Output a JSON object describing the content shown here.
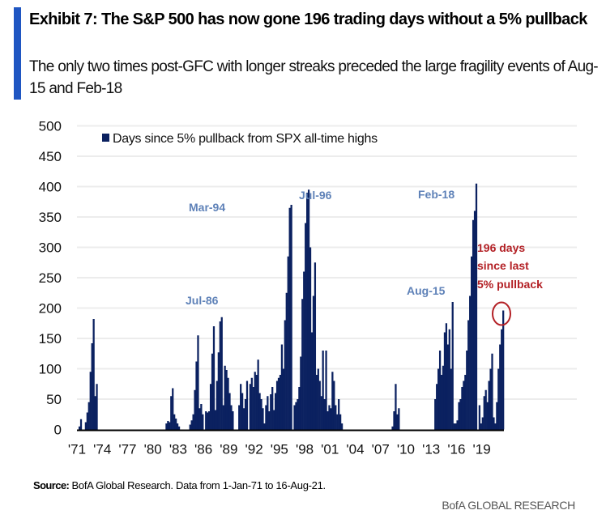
{
  "header": {
    "title": "Exhibit 7: The S&P 500 has now gone 196 trading days without a 5% pullback",
    "subtitle": "The only two times post-GFC with longer streaks preceded the large fragility events of Aug-15 and Feb-18"
  },
  "footer": {
    "source_label": "Source:",
    "source_text": "BofA Global Research. Data from 1-Jan-71 to 16-Aug-21.",
    "brand": "BofA GLOBAL RESEARCH"
  },
  "colors": {
    "accent": "#1f56c2",
    "bar": "#0b2160",
    "annotation": "#5f82b8",
    "highlight": "#b32025",
    "grid": "#ececec"
  },
  "chart_data": {
    "type": "bar",
    "title": "Exhibit 7: The S&P 500 has now gone 196 trading days without a 5% pullback",
    "xlabel": "",
    "ylabel": "",
    "ylim": [
      0,
      500
    ],
    "yticks": [
      "0",
      "50",
      "100",
      "150",
      "200",
      "250",
      "300",
      "350",
      "400",
      "450",
      "500"
    ],
    "ytick_values": [
      0,
      50,
      100,
      150,
      200,
      250,
      300,
      350,
      400,
      450,
      500
    ],
    "xticks": [
      "'71",
      "'74",
      "'77",
      "'80",
      "'83",
      "'86",
      "'89",
      "'92",
      "'95",
      "'98",
      "'01",
      "'04",
      "'07",
      "'10",
      "'13",
      "'16",
      "'19"
    ],
    "xtick_years": [
      1971,
      1974,
      1977,
      1980,
      1983,
      1986,
      1989,
      1992,
      1995,
      1998,
      2001,
      2004,
      2007,
      2010,
      2013,
      2016,
      2019
    ],
    "x_start_year": 1971.0,
    "x_end_year": 2021.63,
    "grid": true,
    "legend": {
      "position": "top",
      "entries": [
        "Days since 5% pullback from SPX all-time highs"
      ]
    },
    "series": [
      {
        "name": "Days since 5% pullback from SPX all-time highs",
        "values": [
          0,
          5,
          17,
          0,
          0,
          12,
          28,
          45,
          95,
          142,
          182,
          55,
          75,
          0,
          0,
          0,
          0,
          0,
          0,
          0,
          0,
          0,
          0,
          0,
          0,
          0,
          0,
          0,
          0,
          0,
          0,
          0,
          0,
          0,
          0,
          0,
          0,
          0,
          0,
          0,
          0,
          0,
          0,
          0,
          0,
          0,
          0,
          0,
          0,
          0,
          0,
          0,
          0,
          0,
          0,
          0,
          10,
          14,
          12,
          55,
          68,
          25,
          18,
          10,
          5,
          0,
          0,
          0,
          0,
          0,
          0,
          8,
          15,
          25,
          65,
          112,
          155,
          35,
          42,
          25,
          0,
          30,
          28,
          30,
          75,
          125,
          170,
          32,
          80,
          127,
          178,
          185,
          40,
          105,
          98,
          85,
          60,
          40,
          30,
          0,
          0,
          0,
          40,
          75,
          60,
          35,
          50,
          80,
          0,
          75,
          85,
          70,
          95,
          90,
          115,
          60,
          50,
          35,
          10,
          40,
          55,
          30,
          58,
          70,
          32,
          60,
          80,
          85,
          90,
          140,
          100,
          180,
          225,
          285,
          365,
          370,
          0,
          40,
          45,
          50,
          70,
          120,
          215,
          260,
          340,
          390,
          395,
          300,
          160,
          220,
          275,
          90,
          100,
          80,
          55,
          130,
          50,
          130,
          30,
          40,
          35,
          95,
          80,
          40,
          25,
          50,
          25,
          10,
          0,
          0,
          0,
          0,
          0,
          0,
          0,
          0,
          0,
          0,
          0,
          0,
          0,
          0,
          0,
          0,
          0,
          0,
          0,
          0,
          0,
          0,
          0,
          0,
          0,
          0,
          0,
          0,
          0,
          0,
          0,
          5,
          30,
          75,
          25,
          35,
          0,
          0,
          0,
          0,
          0,
          0,
          0,
          0,
          0,
          0,
          0,
          0,
          0,
          0,
          0,
          0,
          0,
          0,
          0,
          0,
          0,
          0,
          50,
          75,
          100,
          130,
          90,
          105,
          160,
          175,
          140,
          165,
          100,
          210,
          10,
          10,
          15,
          45,
          50,
          70,
          80,
          90,
          130,
          180,
          220,
          285,
          345,
          360,
          405,
          0,
          40,
          10,
          20,
          55,
          65,
          45,
          80,
          100,
          125,
          20,
          10,
          45,
          100,
          140,
          165,
          196
        ]
      }
    ],
    "annotations": [
      {
        "text": "Jul-86",
        "value": 188
      },
      {
        "text": "Mar-94",
        "value": 370
      },
      {
        "text": "Jul-96",
        "value": 395
      },
      {
        "text": "Aug-15",
        "value": 210
      },
      {
        "text": "Feb-18",
        "value": 405
      },
      {
        "text": "196 days",
        "value": 196,
        "style": "highlight"
      },
      {
        "text": "since last",
        "style": "highlight"
      },
      {
        "text": "5% pullback",
        "style": "highlight"
      }
    ]
  }
}
